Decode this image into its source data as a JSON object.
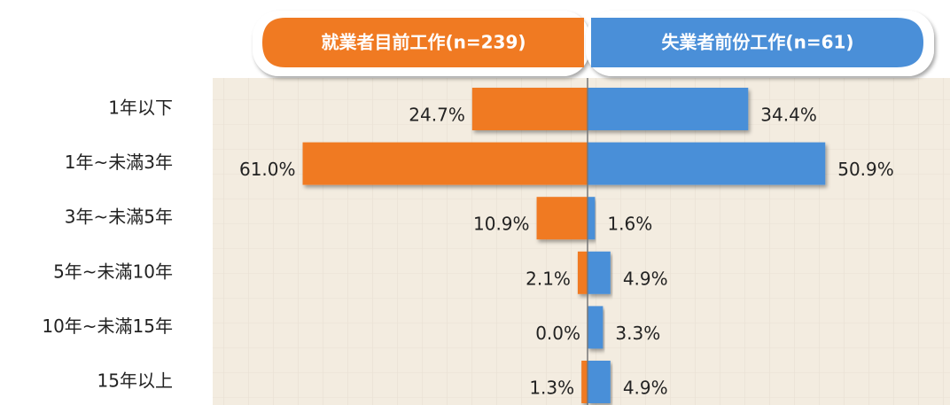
{
  "chart_data": {
    "type": "butterfly",
    "categories": [
      "1年以下",
      "1年~未滿3年",
      "3年~未滿5年",
      "5年~未滿10年",
      "10年~未滿15年",
      "15年以上"
    ],
    "series": [
      {
        "name": "就業者目前工作(n=239)",
        "color": "#f07a22",
        "values": [
          24.7,
          61.0,
          10.9,
          2.1,
          0.0,
          1.3
        ],
        "value_labels": [
          "24.7%",
          "61.0%",
          "10.9%",
          "2.1%",
          "0.0%",
          "1.3%"
        ]
      },
      {
        "name": "失業者前份工作(n=61)",
        "color": "#4a8fd8",
        "values": [
          34.4,
          50.9,
          1.6,
          4.9,
          3.3,
          4.9
        ],
        "value_labels": [
          "34.4%",
          "50.9%",
          "1.6%",
          "4.9%",
          "3.3%",
          "4.9%"
        ]
      }
    ]
  }
}
